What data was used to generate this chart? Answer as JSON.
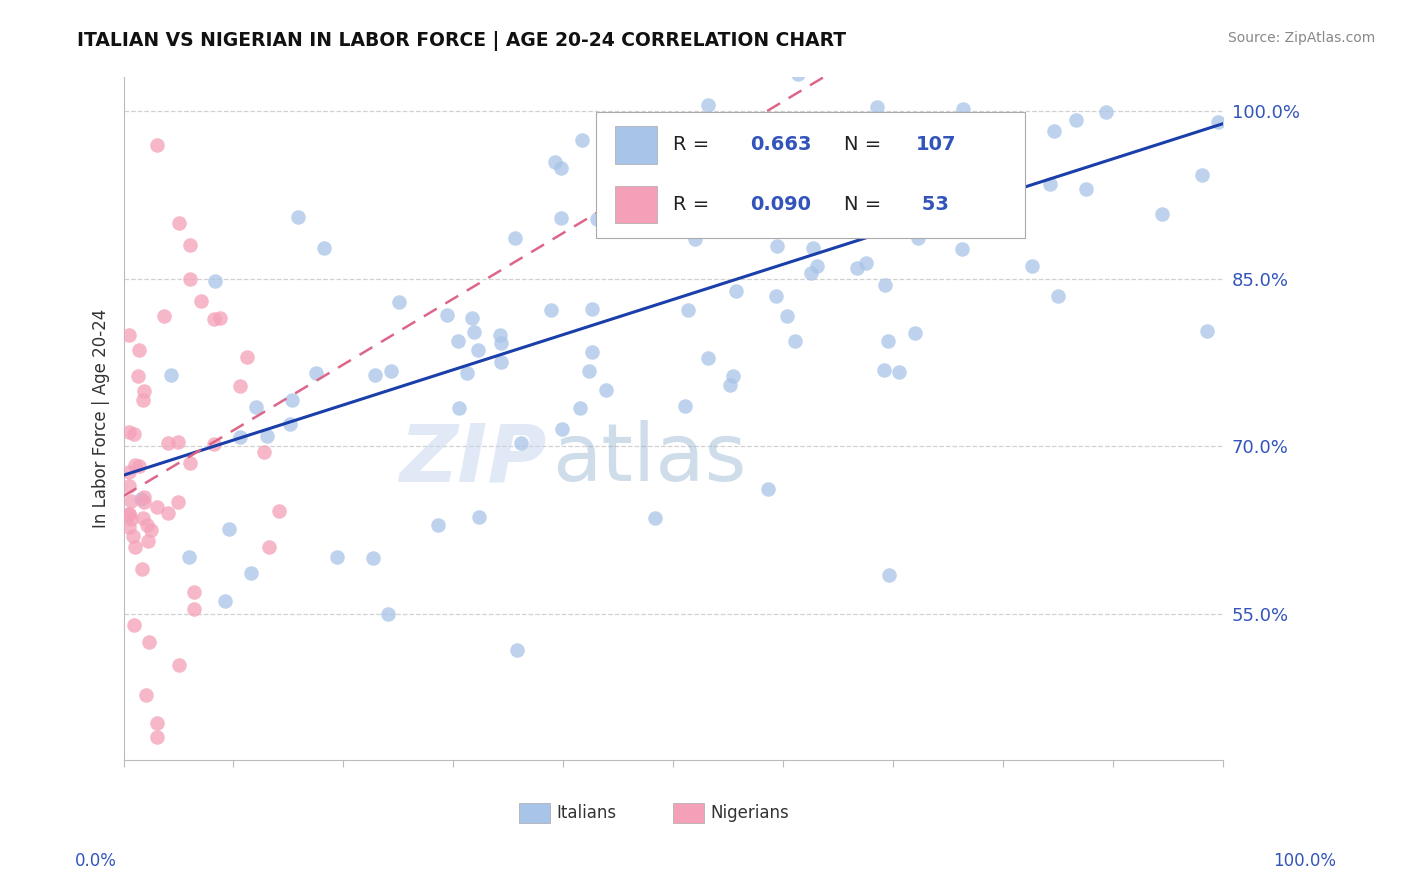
{
  "title": "ITALIAN VS NIGERIAN IN LABOR FORCE | AGE 20-24 CORRELATION CHART",
  "source": "Source: ZipAtlas.com",
  "ylabel": "In Labor Force | Age 20-24",
  "italian_color": "#a8c4e8",
  "nigerian_color": "#f4a0b8",
  "regression_italian_color": "#1a3faa",
  "regression_nigerian_color": "#dd6688",
  "background_color": "#ffffff",
  "watermark_zip": "ZIP",
  "watermark_atlas": "atlas",
  "xlim": [
    0.0,
    1.0
  ],
  "ylim": [
    0.42,
    1.03
  ],
  "yticks": [
    0.55,
    0.7,
    0.85,
    1.0
  ],
  "ytick_labels": [
    "55.0%",
    "70.0%",
    "85.0%",
    "100.0%"
  ],
  "legend_italians_R": "0.663",
  "legend_italians_N": "107",
  "legend_nigerians_R": "0.090",
  "legend_nigerians_N": " 53"
}
